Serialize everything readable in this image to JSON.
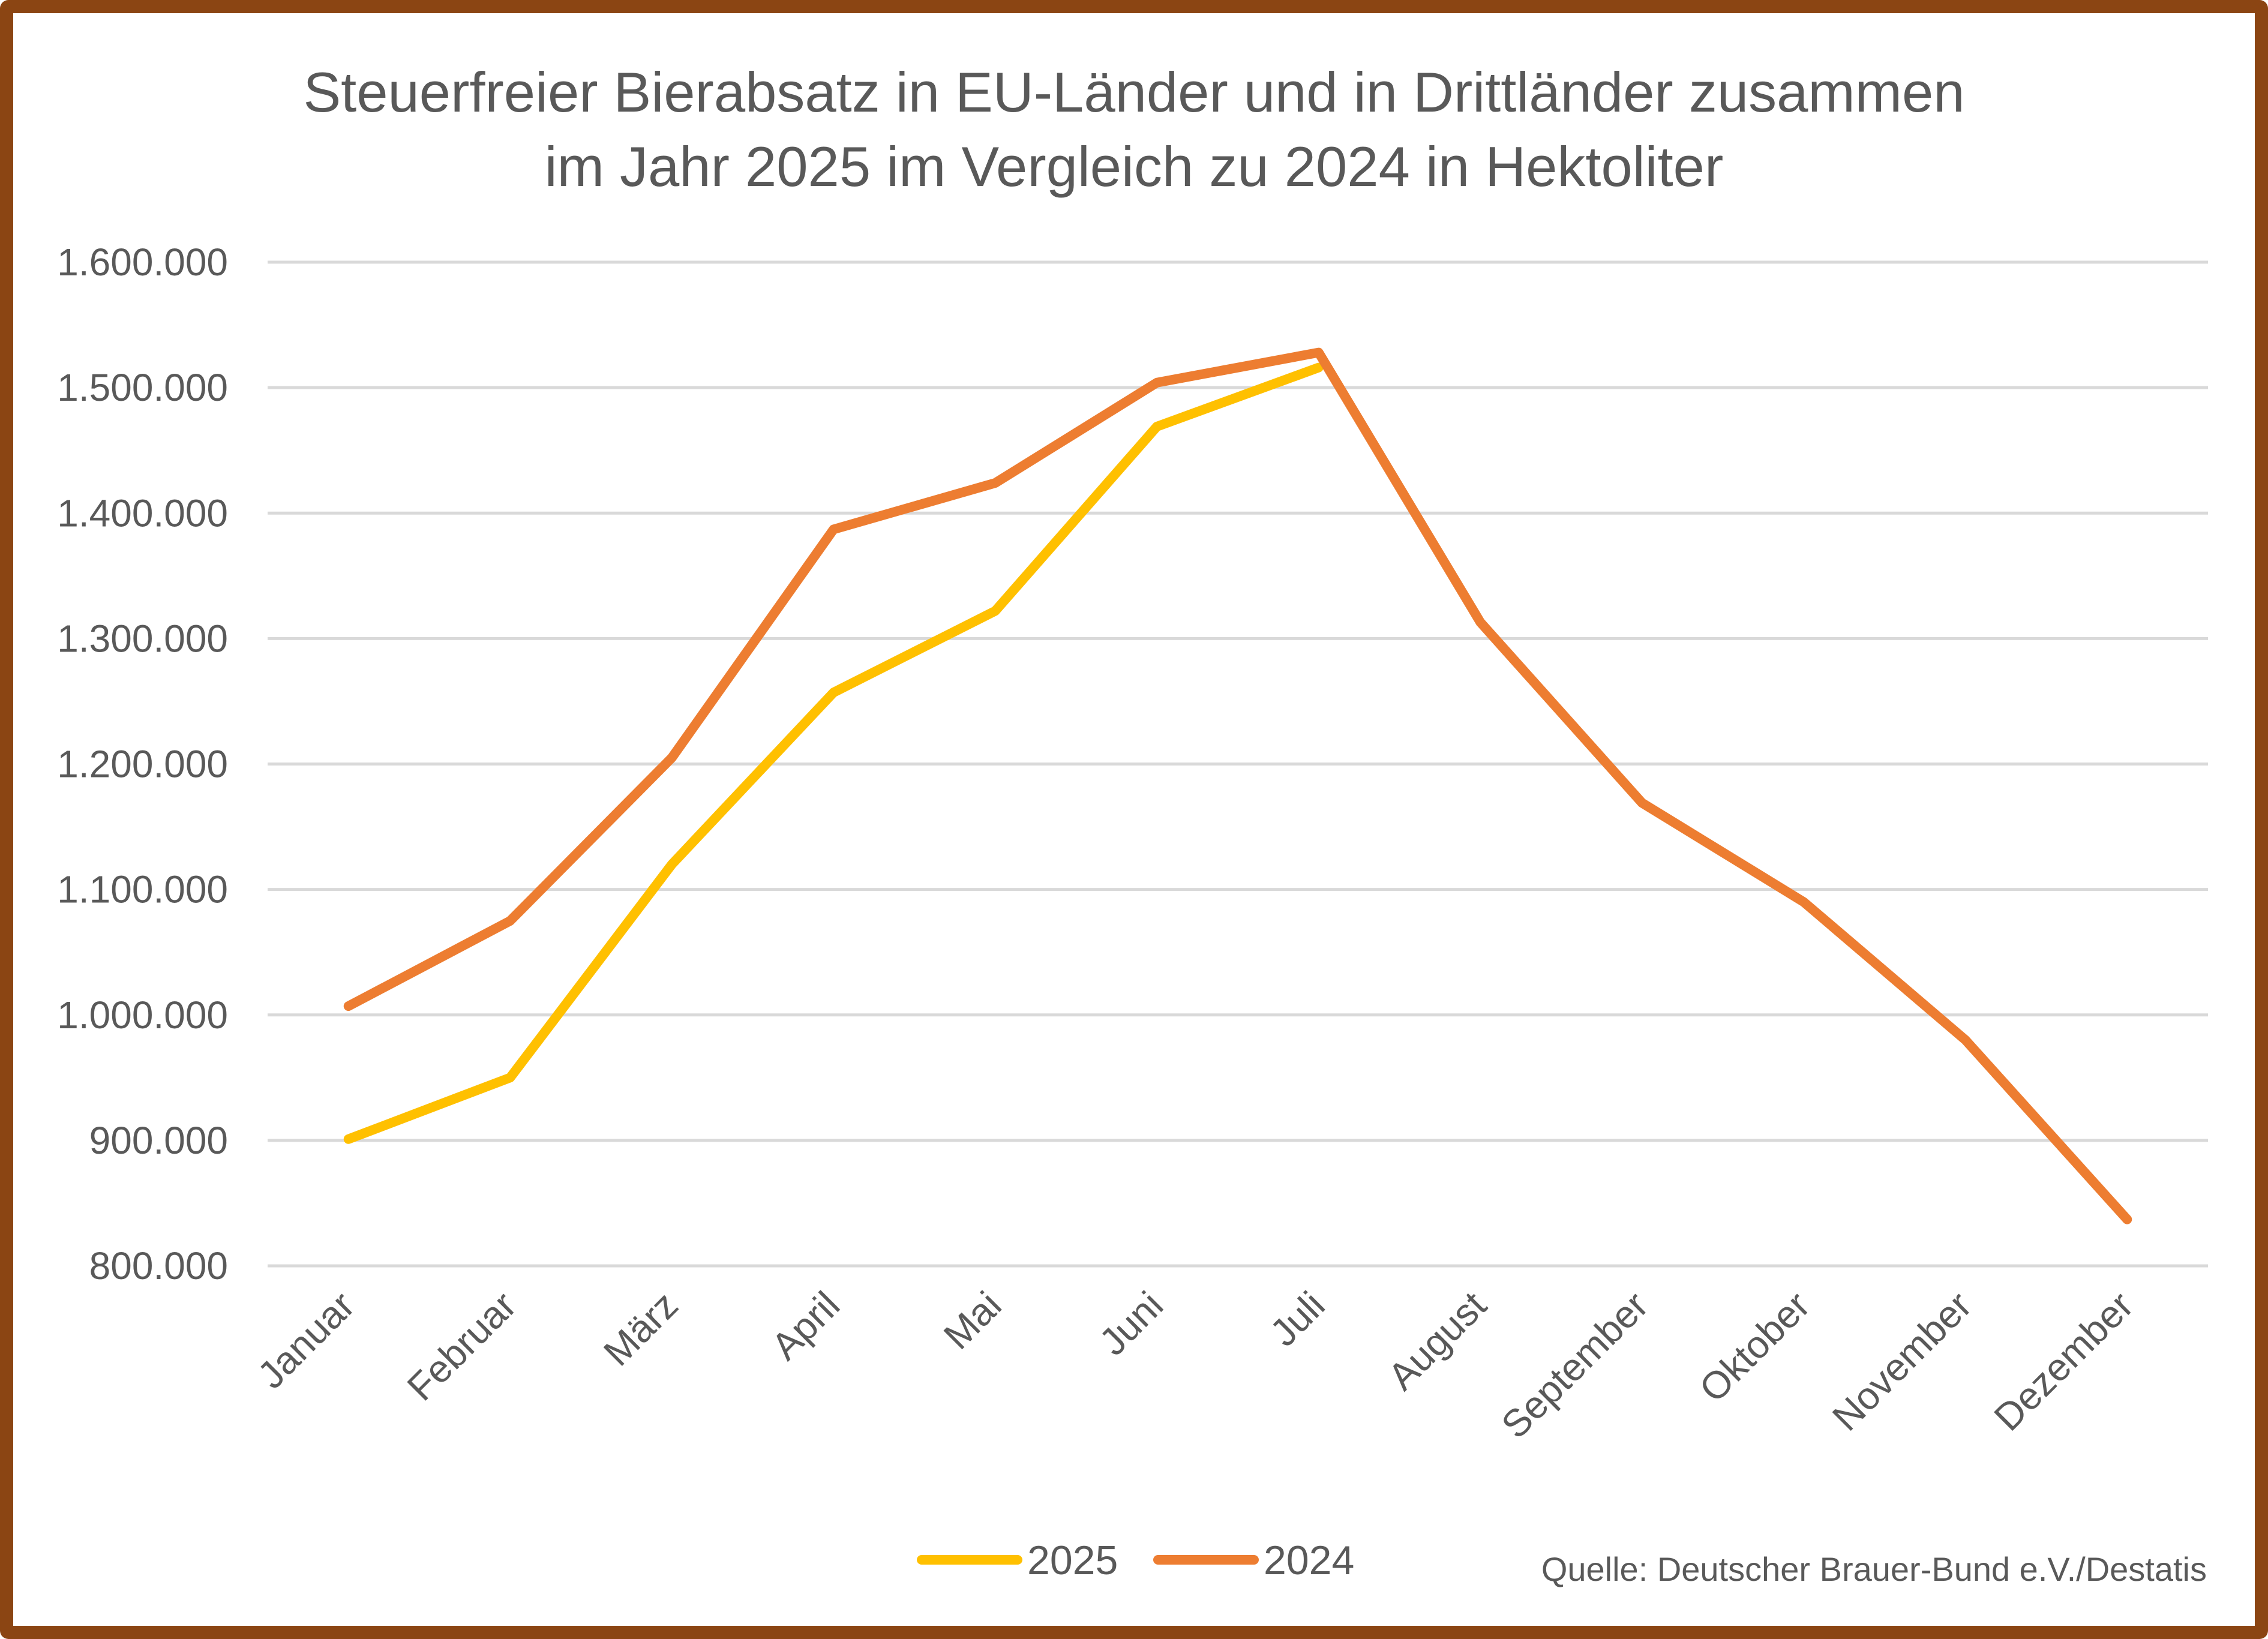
{
  "chart_data": {
    "type": "line",
    "title_lines": [
      "Steuerfreier Bierabsatz in EU-Länder und in Drittländer zusammen",
      "im Jahr 2025 im Vergleich zu 2024 in Hektoliter"
    ],
    "categories": [
      "Januar",
      "Februar",
      "März",
      "April",
      "Mai",
      "Juni",
      "Juli",
      "August",
      "September",
      "Oktober",
      "November",
      "Dezember"
    ],
    "series": [
      {
        "name": "2025",
        "color": "#FFC000",
        "values": [
          901000,
          950000,
          1120000,
          1257000,
          1322000,
          1469000,
          1516000,
          null,
          null,
          null,
          null,
          null
        ]
      },
      {
        "name": "2024",
        "color": "#ED7D31",
        "values": [
          1007000,
          1075000,
          1205000,
          1387000,
          1424000,
          1504000,
          1528000,
          1313000,
          1169000,
          1090000,
          980000,
          837000
        ]
      }
    ],
    "ylim": [
      800000,
      1600000
    ],
    "y_ticks": [
      800000,
      900000,
      1000000,
      1100000,
      1200000,
      1300000,
      1400000,
      1500000,
      1600000
    ],
    "y_tick_labels": [
      "800.000",
      "900.000",
      "1.000.000",
      "1.100.000",
      "1.200.000",
      "1.300.000",
      "1.400.000",
      "1.500.000",
      "1.600.000"
    ],
    "grid": true,
    "legend_position": "bottom-center",
    "xlabel": "",
    "ylabel": ""
  },
  "source_note": "Quelle: Deutscher Brauer-Bund e.V./Destatis"
}
